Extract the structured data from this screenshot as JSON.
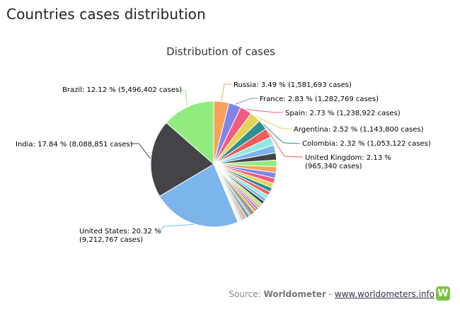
{
  "page": {
    "title": "Countries cases distribution"
  },
  "footer": {
    "source_label": "Source: ",
    "source_name": "Worldometer",
    "separator": " - ",
    "link_text": "www.worldometers.info",
    "logo_letter": "W",
    "logo_color": "#7bc142"
  },
  "chart_data": {
    "type": "pie",
    "title": "Distribution of cases",
    "slices": [
      {
        "name": "Russia",
        "percent": 3.49,
        "cases": "1,581,693",
        "color": "#f7a35c",
        "label_lines": [
          "Russia: 3.49 % (1,581,693 cases)"
        ]
      },
      {
        "name": "France",
        "percent": 2.83,
        "cases": "1,282,769",
        "color": "#8085e9",
        "label_lines": [
          "France: 2.83 % (1,282,769 cases)"
        ]
      },
      {
        "name": "Spain",
        "percent": 2.73,
        "cases": "1,238,922",
        "color": "#f15c80",
        "label_lines": [
          "Spain: 2.73 % (1,238,922 cases)"
        ]
      },
      {
        "name": "Argentina",
        "percent": 2.52,
        "cases": "1,143,800",
        "color": "#e4d354",
        "label_lines": [
          "Argentina: 2.52 % (1,143,800 cases)"
        ]
      },
      {
        "name": "Colombia",
        "percent": 2.32,
        "cases": "1,053,122",
        "color": "#2b908f",
        "label_lines": [
          "Colombia: 2.32 % (1,053,122 cases)"
        ]
      },
      {
        "name": "United Kingdom",
        "percent": 2.13,
        "cases": "965,340",
        "color": "#f45b5b",
        "label_lines": [
          "United Kingdom: 2.13 %",
          "(965,340 cases)"
        ]
      },
      {
        "name": "",
        "percent": 1.95,
        "color": "#91e8e1"
      },
      {
        "name": "",
        "percent": 1.8,
        "color": "#7cb5ec"
      },
      {
        "name": "",
        "percent": 1.65,
        "color": "#434348"
      },
      {
        "name": "",
        "percent": 1.5,
        "color": "#90ed7d"
      },
      {
        "name": "",
        "percent": 1.38,
        "color": "#f7a35c"
      },
      {
        "name": "",
        "percent": 1.28,
        "color": "#8085e9"
      },
      {
        "name": "",
        "percent": 1.18,
        "color": "#f15c80"
      },
      {
        "name": "",
        "percent": 1.08,
        "color": "#e4d354"
      },
      {
        "name": "",
        "percent": 1.0,
        "color": "#2b908f"
      },
      {
        "name": "",
        "percent": 0.92,
        "color": "#f45b5b"
      },
      {
        "name": "",
        "percent": 0.85,
        "color": "#91e8e1"
      },
      {
        "name": "",
        "percent": 0.78,
        "color": "#7cb5ec"
      },
      {
        "name": "",
        "percent": 0.72,
        "color": "#434348"
      },
      {
        "name": "",
        "percent": 0.66,
        "color": "#90ed7d"
      },
      {
        "name": "",
        "percent": 0.6,
        "color": "#f7a35c"
      },
      {
        "name": "",
        "percent": 0.55,
        "color": "#8085e9"
      },
      {
        "name": "",
        "percent": 0.5,
        "color": "#f15c80"
      },
      {
        "name": "",
        "percent": 0.46,
        "color": "#e4d354"
      },
      {
        "name": "",
        "percent": 0.42,
        "color": "#2b908f"
      },
      {
        "name": "",
        "percent": 0.38,
        "color": "#f45b5b"
      },
      {
        "name": "",
        "percent": 0.35,
        "color": "#91e8e1"
      },
      {
        "name": "",
        "percent": 0.32,
        "color": "#7cb5ec"
      },
      {
        "name": "",
        "percent": 0.29,
        "color": "#434348"
      },
      {
        "name": "",
        "percent": 0.26,
        "color": "#90ed7d"
      },
      {
        "name": "",
        "percent": 0.24,
        "color": "#f7a35c"
      },
      {
        "name": "",
        "percent": 0.22,
        "color": "#8085e9"
      },
      {
        "name": "",
        "percent": 0.2,
        "color": "#f15c80"
      },
      {
        "name": "",
        "percent": 0.18,
        "color": "#e4d354"
      },
      {
        "name": "",
        "percent": 0.16,
        "color": "#2b908f"
      },
      {
        "name": "",
        "percent": 0.14,
        "color": "#f45b5b"
      },
      {
        "name": "",
        "percent": 0.12,
        "color": "#91e8e1"
      },
      {
        "name": "",
        "percent": 0.11,
        "color": "#7cb5ec"
      },
      {
        "name": "",
        "percent": 0.1,
        "color": "#434348"
      },
      {
        "name": "",
        "percent": 0.09,
        "color": "#90ed7d"
      },
      {
        "name": "",
        "percent": 0.08,
        "color": "#f7a35c"
      },
      {
        "name": "",
        "percent": 0.07,
        "color": "#8085e9"
      },
      {
        "name": "",
        "percent": 0.06,
        "color": "#f15c80"
      },
      {
        "name": "",
        "percent": 0.05,
        "color": "#e4d354"
      },
      {
        "name": "",
        "percent": 0.05,
        "color": "#2b908f"
      },
      {
        "name": "",
        "percent": 0.04,
        "color": "#f45b5b"
      },
      {
        "name": "",
        "percent": 0.04,
        "color": "#91e8e1"
      },
      {
        "name": "",
        "percent": 0.03,
        "color": "#7cb5ec"
      },
      {
        "name": "",
        "percent": 0.03,
        "color": "#434348"
      },
      {
        "name": "",
        "percent": 0.02,
        "color": "#90ed7d"
      },
      {
        "name": "",
        "percent": 0.02,
        "color": "#f7a35c"
      },
      {
        "name": "",
        "percent": 0.02,
        "color": "#8085e9"
      },
      {
        "name": "",
        "percent": 0.01,
        "color": "#f15c80"
      },
      {
        "name": "",
        "percent": 0.01,
        "color": "#e4d354"
      },
      {
        "name": "",
        "percent": 0.01,
        "color": "#2b908f"
      },
      {
        "name": "",
        "percent": 0.01,
        "color": "#f45b5b"
      },
      {
        "name": "United States",
        "percent": 20.32,
        "cases": "9,212,767",
        "color": "#7cb5ec",
        "label_lines": [
          "United States: 20.32 %",
          "(9,212,767 cases)"
        ]
      },
      {
        "name": "India",
        "percent": 17.84,
        "cases": "8,088,851",
        "color": "#434348",
        "label_lines": [
          "India: 17.84 % (8,088,851 cases)"
        ]
      },
      {
        "name": "Brazil",
        "percent": 12.12,
        "cases": "5,496,402",
        "color": "#90ed7d",
        "label_lines": [
          "Brazil: 12.12 % (5,496,402 cases)"
        ]
      }
    ]
  }
}
